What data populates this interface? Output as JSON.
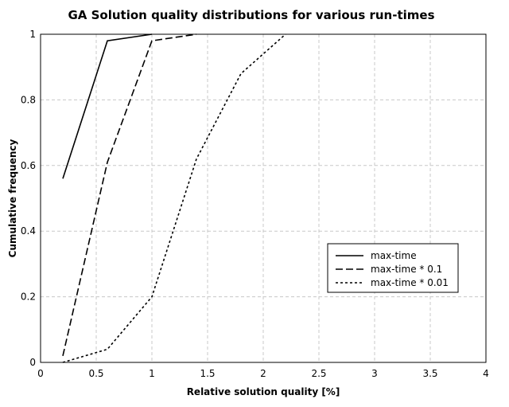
{
  "chart_data": {
    "type": "line",
    "title": "GA Solution quality distributions for various run-times",
    "xlabel": "Relative solution quality [%]",
    "ylabel": "Cumulative frequency",
    "xlim": [
      0,
      4
    ],
    "ylim": [
      0,
      1
    ],
    "xticks": [
      "0",
      "0.5",
      "1",
      "1.5",
      "2",
      "2.5",
      "3",
      "3.5",
      "4"
    ],
    "yticks": [
      "0",
      "0.2",
      "0.4",
      "0.6",
      "0.8",
      "1"
    ],
    "grid": true,
    "legend_position": "center-right",
    "series": [
      {
        "name": "max-time",
        "style": "solid",
        "x": [
          0.2,
          0.6,
          1.0
        ],
        "y": [
          0.56,
          0.98,
          1.0
        ]
      },
      {
        "name": "max-time * 0.1",
        "style": "dashed",
        "x": [
          0.2,
          0.6,
          1.0,
          1.4
        ],
        "y": [
          0.02,
          0.61,
          0.98,
          1.0
        ]
      },
      {
        "name": "max-time * 0.01",
        "style": "dotted",
        "x": [
          0.2,
          0.6,
          1.0,
          1.4,
          1.8,
          2.2
        ],
        "y": [
          0.0,
          0.04,
          0.2,
          0.62,
          0.88,
          1.0
        ]
      }
    ]
  }
}
